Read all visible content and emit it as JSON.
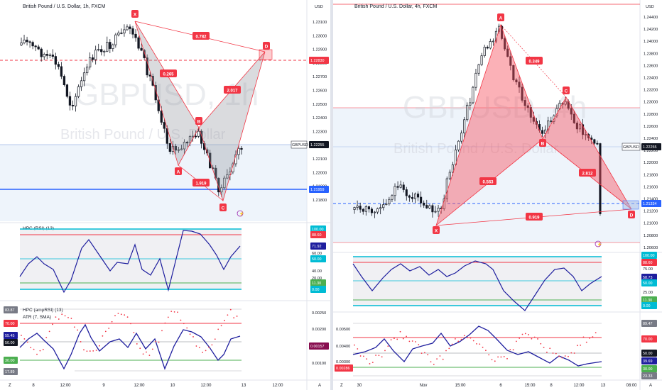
{
  "colors": {
    "up": "#131722",
    "down": "#131722",
    "pattern_red": "#f23645",
    "pattern_fill_left": "#9598a1",
    "pattern_fill_right": "#f7525f",
    "blue_line": "#2962ff",
    "rsi_line": "#1e1e9e",
    "cyan": "#00bcd4",
    "green": "#4caf50",
    "dot_red": "#f23645"
  },
  "left": {
    "title": "British Pound / U.S. Dollar, 1h, FXCM",
    "currency": "USD",
    "watermark_main": "GBPUSD, 1h",
    "watermark_sub": "British Pound / U.S. Dollar",
    "price_ticks": [
      "1.23100",
      "1.23000",
      "1.22900",
      "1.22800",
      "1.22700",
      "1.22600",
      "1.22500",
      "1.22400",
      "1.22300",
      "1.22200",
      "1.22100",
      "1.22000",
      "1.21900",
      "1.21800"
    ],
    "price_tag": {
      "symbol": "GBPUSD",
      "value": "1.22255"
    },
    "dash_tag": "1.22830",
    "blue_tag": "1.21959",
    "points": [
      "X",
      "A",
      "B",
      "C",
      "D"
    ],
    "ratios": [
      "0.782",
      "0.265",
      "2.017",
      "1.919"
    ],
    "ind1_label": "HPC (RSI) (13)",
    "ind1_tags": [
      "100.00",
      "88.60",
      "71.92",
      "60.00",
      "50.00",
      "40.00",
      "20.00",
      "11.30",
      "0.00"
    ],
    "ind2_label1": "HPC (ampRSI) (13)",
    "ind2_label2": "ATR (7, SMA)",
    "ind2_left_tags": [
      "83.87",
      "70.00",
      "55.45",
      "50.00",
      "30.00",
      "17.89"
    ],
    "ind2_right_ticks": [
      "0.00250",
      "0.00200",
      "0.00150",
      "0.00100"
    ],
    "ind2_right_tag": "0.00157",
    "time_labels": [
      "8",
      "12:00",
      "9",
      "12:00",
      "10",
      "12:00",
      "13",
      "12:00"
    ],
    "corner_left": "Z",
    "corner_right": "A"
  },
  "right": {
    "title": "British Pound / U.S. Dollar, 4h, FXCM",
    "currency": "USD",
    "watermark_main": "GBPUSD, 4h",
    "watermark_sub": "British Pound / U.S. Dollar",
    "price_ticks": [
      "1.24400",
      "1.24200",
      "1.24000",
      "1.23800",
      "1.23600",
      "1.23400",
      "1.23200",
      "1.23000",
      "1.22800",
      "1.22600",
      "1.22400",
      "1.22200",
      "1.22000",
      "1.21800",
      "1.21600",
      "1.21400",
      "1.21200",
      "1.21000",
      "1.20800",
      "1.20600"
    ],
    "price_tag": {
      "symbol": "GBPUSD",
      "value": "1.22255"
    },
    "dash_tag": "1.21334",
    "points": [
      "X",
      "A",
      "B",
      "C",
      "D"
    ],
    "ratios": [
      "0.349",
      "0.563",
      "2.812",
      "0.919"
    ],
    "ind1_tags": [
      "100.00",
      "88.60",
      "75.00",
      "58.73",
      "50.00",
      "25.00",
      "11.30",
      "0.00"
    ],
    "ind2_right_tags": [
      "89.47",
      "70.00",
      "50.00",
      "39.69",
      "30.00",
      "23.33"
    ],
    "ind2_left_ticks": [
      "0.00500",
      "0.00400",
      "0.00300"
    ],
    "ind2_left_tag": "0.00286",
    "time_labels": [
      "30",
      "Nov",
      "15:00",
      "6",
      "15:00",
      "8",
      "12:00",
      "13",
      "08:00"
    ],
    "corner_left": "Z",
    "corner_right": "A"
  }
}
